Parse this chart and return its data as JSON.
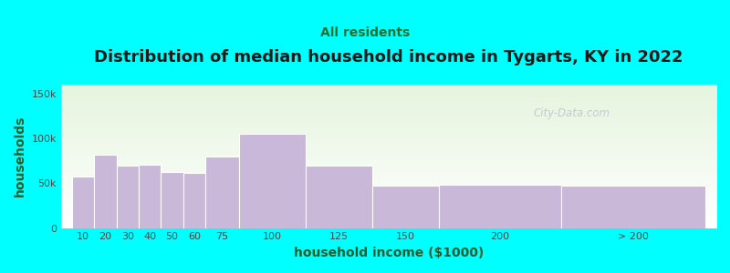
{
  "title": "Distribution of median household income in Tygarts, KY in 2022",
  "subtitle": "All residents",
  "xlabel": "household income ($1000)",
  "ylabel": "households",
  "background_color": "#00FFFF",
  "bar_color": "#c9b8d8",
  "bar_edge_color": "#ffffff",
  "title_color": "#1a1a1a",
  "subtitle_color": "#2a6e2a",
  "axis_label_color": "#2a5a2a",
  "watermark": "City-Data.com",
  "categories": [
    "10",
    "20",
    "30",
    "40",
    "50",
    "60",
    "75",
    "100",
    "125",
    "150",
    "200",
    "> 200"
  ],
  "values": [
    57000,
    82000,
    70000,
    71000,
    63000,
    62000,
    80000,
    105000,
    70000,
    47000,
    48000,
    47000
  ],
  "ylim": [
    0,
    160000
  ],
  "yticks": [
    0,
    50000,
    100000,
    150000
  ],
  "ytick_labels": [
    "0",
    "50k",
    "100k",
    "150k"
  ],
  "bar_lefts": [
    5,
    15,
    25,
    35,
    45,
    55,
    65,
    80,
    110,
    140,
    170,
    225
  ],
  "bar_widths": [
    10,
    10,
    10,
    10,
    10,
    10,
    15,
    30,
    30,
    30,
    55,
    65
  ],
  "title_fontsize": 13,
  "subtitle_fontsize": 10,
  "label_fontsize": 10
}
